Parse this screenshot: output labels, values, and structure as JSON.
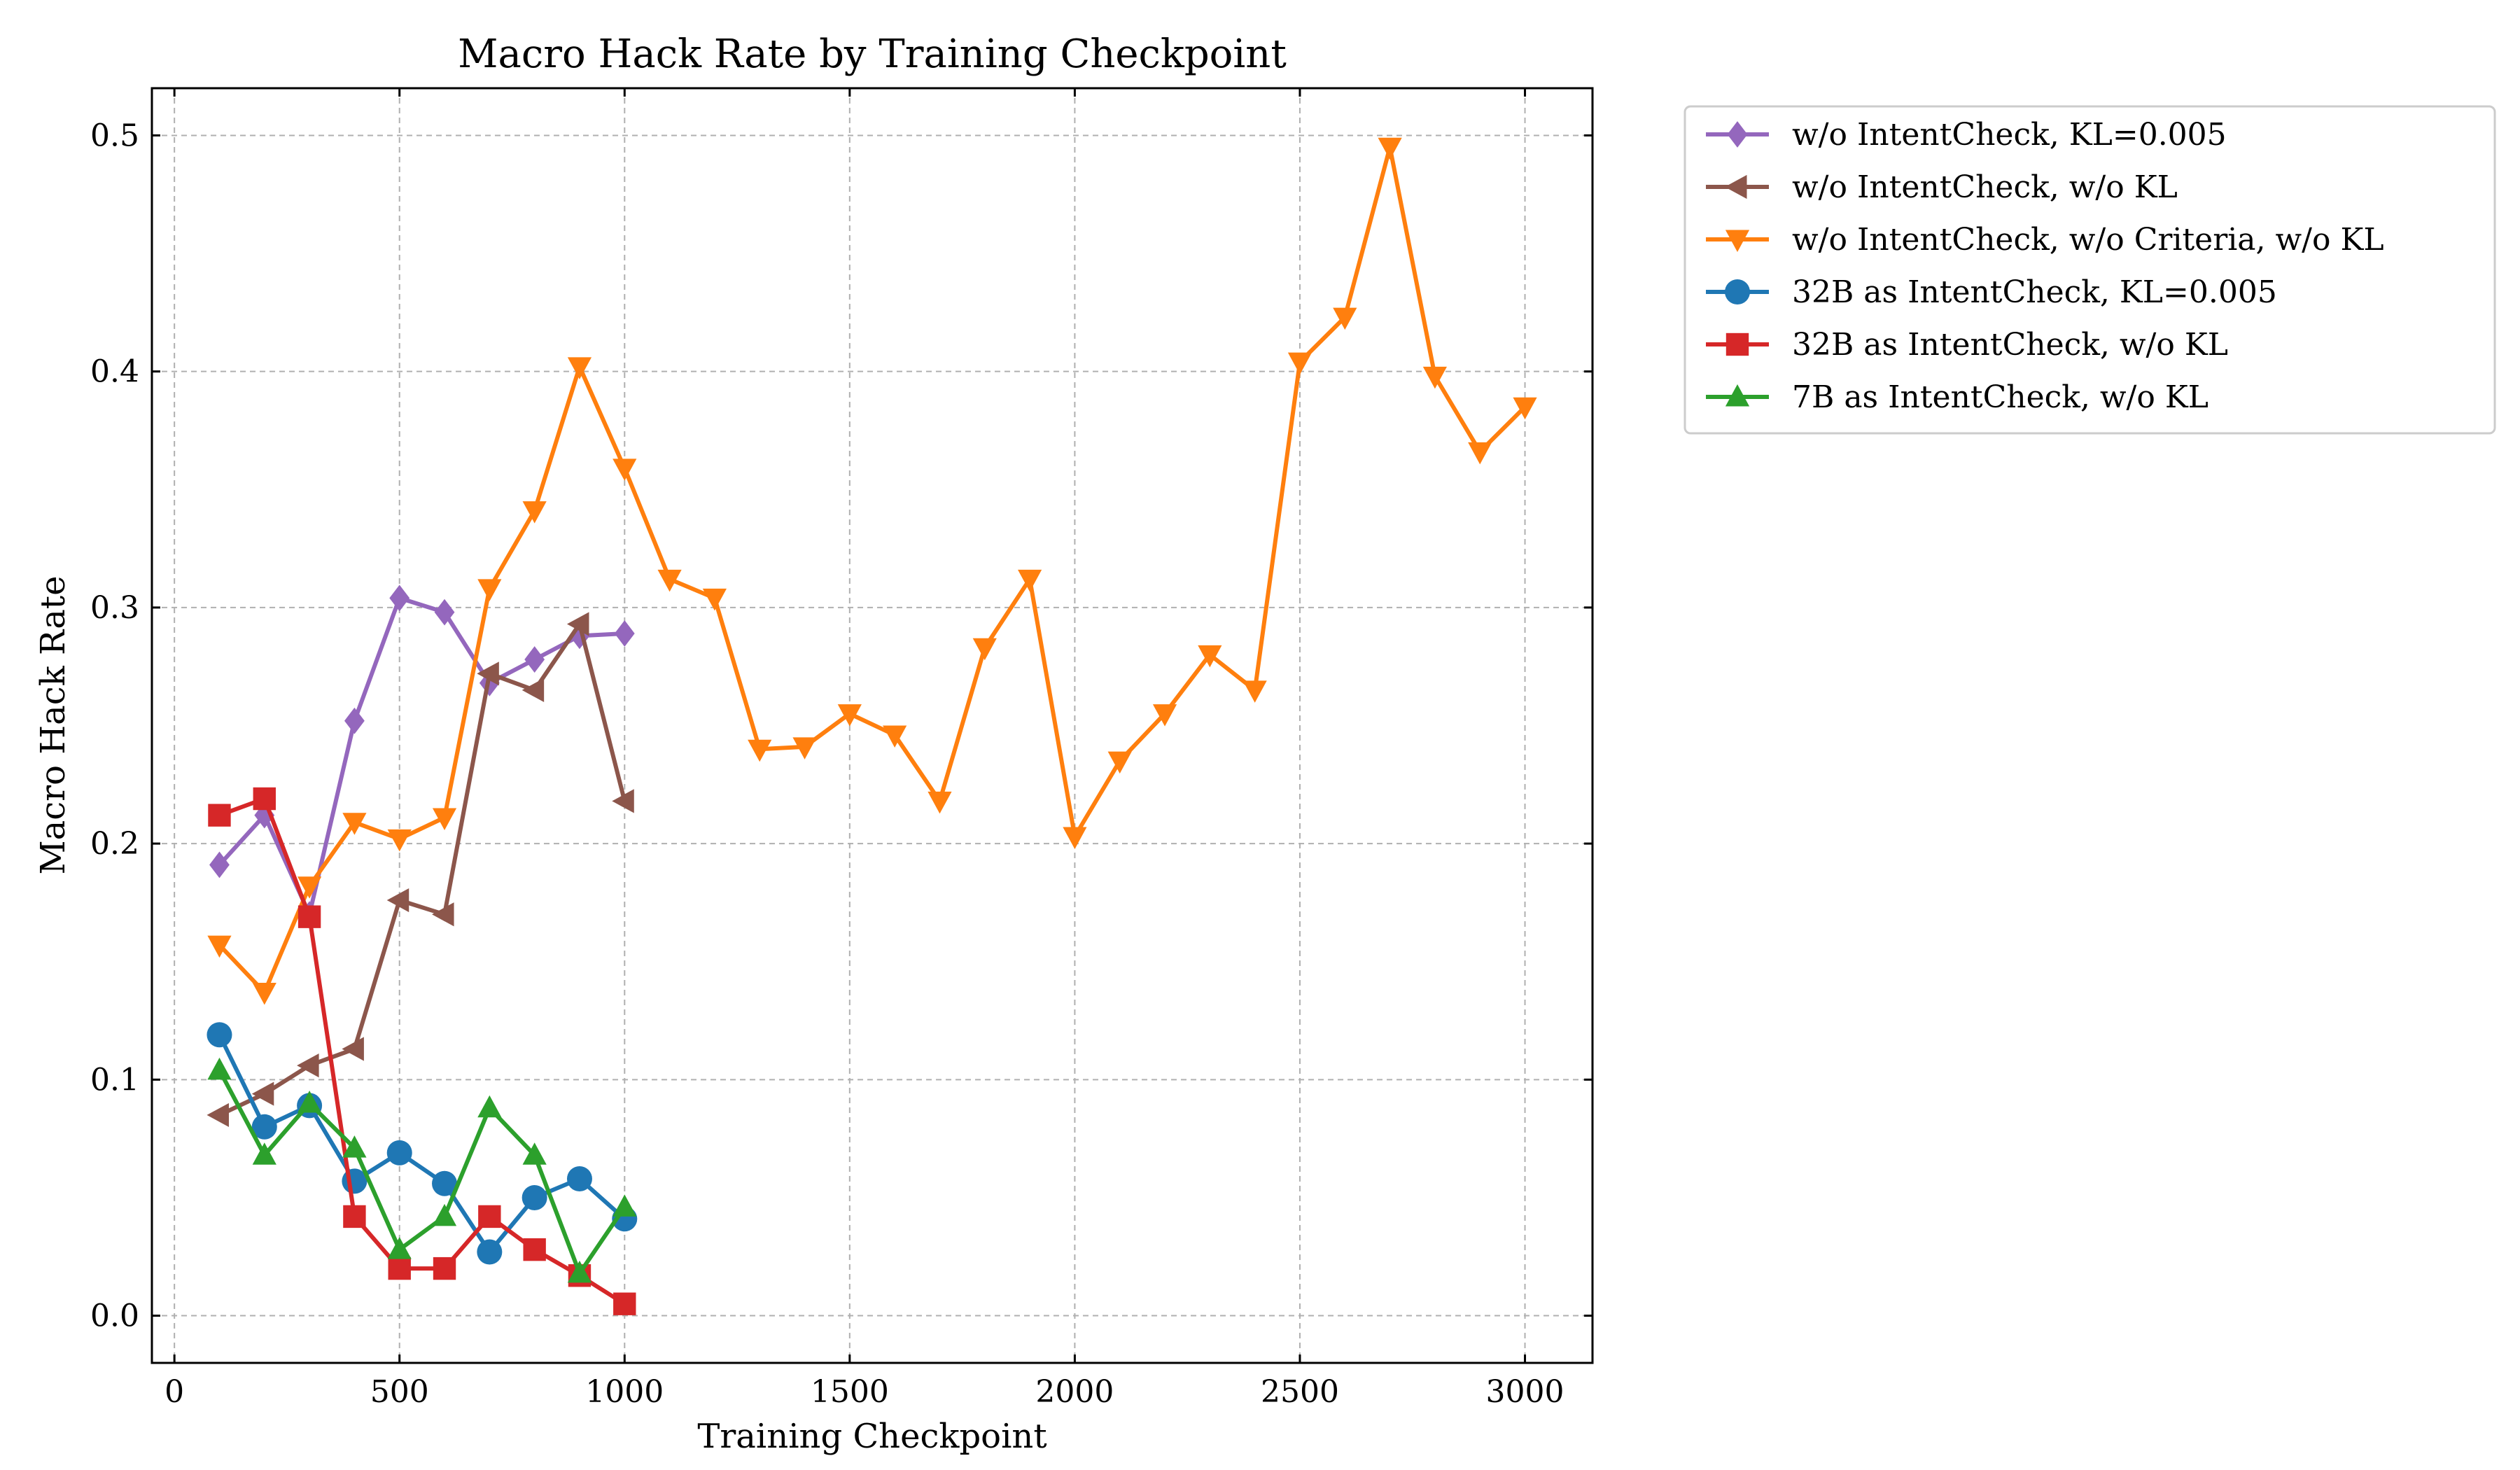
{
  "chart_data": {
    "type": "line",
    "title": "Macro Hack Rate by Training Checkpoint",
    "xlabel": "Training Checkpoint",
    "ylabel": "Macro Hack Rate",
    "xlim": [
      -50,
      3150
    ],
    "ylim": [
      -0.02,
      0.52
    ],
    "xticks": [
      0,
      500,
      1000,
      1500,
      2000,
      2500,
      3000
    ],
    "xtick_labels": [
      "0",
      "500",
      "1000",
      "1500",
      "2000",
      "2500",
      "3000"
    ],
    "yticks": [
      0.0,
      0.1,
      0.2,
      0.3,
      0.4,
      0.5
    ],
    "ytick_labels": [
      "0.0",
      "0.1",
      "0.2",
      "0.3",
      "0.4",
      "0.5"
    ],
    "grid": true,
    "legend_position": "outside-right-top",
    "series": [
      {
        "name": "w/o IntentCheck, KL=0.005",
        "color": "#9467bd",
        "marker": "diamond",
        "x": [
          100,
          200,
          300,
          400,
          500,
          600,
          700,
          800,
          900,
          1000
        ],
        "y": [
          0.191,
          0.212,
          0.17,
          0.252,
          0.304,
          0.298,
          0.268,
          0.278,
          0.288,
          0.289
        ]
      },
      {
        "name": "w/o IntentCheck, w/o KL",
        "color": "#8c564b",
        "marker": "triangle-left",
        "x": [
          100,
          200,
          300,
          400,
          500,
          600,
          700,
          800,
          900,
          1000
        ],
        "y": [
          0.085,
          0.094,
          0.106,
          0.113,
          0.176,
          0.17,
          0.272,
          0.265,
          0.293,
          0.218
        ]
      },
      {
        "name": "w/o IntentCheck, w/o Criteria, w/o KL",
        "color": "#ff7f0e",
        "marker": "triangle-down",
        "x": [
          100,
          200,
          300,
          400,
          500,
          600,
          700,
          800,
          900,
          1000,
          1100,
          1200,
          1300,
          1400,
          1500,
          1600,
          1700,
          1800,
          1900,
          2000,
          2100,
          2200,
          2300,
          2400,
          2500,
          2600,
          2700,
          2800,
          2900,
          3000
        ],
        "y": [
          0.157,
          0.137,
          0.182,
          0.209,
          0.202,
          0.211,
          0.308,
          0.341,
          0.402,
          0.359,
          0.312,
          0.304,
          0.24,
          0.241,
          0.255,
          0.246,
          0.218,
          0.283,
          0.312,
          0.203,
          0.235,
          0.255,
          0.28,
          0.265,
          0.404,
          0.423,
          0.495,
          0.398,
          0.366,
          0.385
        ]
      },
      {
        "name": "32B as IntentCheck, KL=0.005",
        "color": "#1f77b4",
        "marker": "circle",
        "x": [
          100,
          200,
          300,
          400,
          500,
          600,
          700,
          800,
          900,
          1000
        ],
        "y": [
          0.119,
          0.08,
          0.089,
          0.057,
          0.069,
          0.056,
          0.027,
          0.05,
          0.058,
          0.041
        ]
      },
      {
        "name": "32B as IntentCheck, w/o KL",
        "color": "#d62728",
        "marker": "square",
        "x": [
          100,
          200,
          300,
          400,
          500,
          600,
          700,
          800,
          900,
          1000
        ],
        "y": [
          0.212,
          0.219,
          0.169,
          0.042,
          0.02,
          0.02,
          0.042,
          0.028,
          0.017,
          0.005
        ]
      },
      {
        "name": "7B as IntentCheck, w/o KL",
        "color": "#2ca02c",
        "marker": "triangle-up",
        "x": [
          100,
          200,
          300,
          400,
          500,
          600,
          700,
          800,
          900,
          1000
        ],
        "y": [
          0.104,
          0.068,
          0.09,
          0.071,
          0.028,
          0.042,
          0.088,
          0.068,
          0.018,
          0.046
        ]
      }
    ]
  }
}
